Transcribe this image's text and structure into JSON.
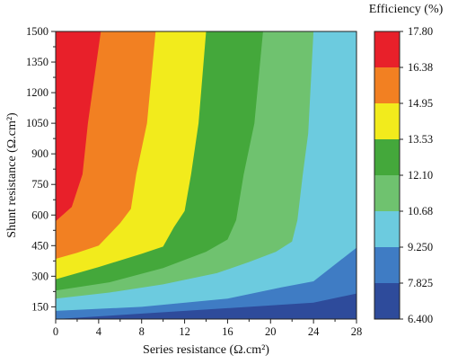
{
  "chart_data": {
    "type": "heatmap",
    "subtype": "filled-contour",
    "xlabel": "Series resistance (Ω.cm²)",
    "ylabel": "Shunt resistance (Ω.cm²)",
    "xlim": [
      0,
      28
    ],
    "ylim": [
      90,
      1500
    ],
    "x_ticks": [
      0,
      4,
      8,
      12,
      16,
      20,
      24,
      28
    ],
    "y_ticks": [
      150,
      300,
      450,
      600,
      750,
      900,
      1050,
      1200,
      1350,
      1500
    ],
    "colorbar": {
      "title": "Efficiency (%)",
      "levels": [
        "6.400",
        "7.825",
        "9.250",
        "10.68",
        "12.10",
        "13.53",
        "14.95",
        "16.38",
        "17.80"
      ],
      "colors": [
        "#2e4b9b",
        "#3f7cc4",
        "#6ccbdf",
        "#6fc26f",
        "#44a83b",
        "#f2eb1c",
        "#f28022",
        "#e8202a"
      ]
    },
    "contour_boundaries": [
      {
        "between": [
          "7.825",
          "9.250"
        ],
        "points": [
          [
            0,
            90
          ],
          [
            24,
            170
          ],
          [
            28,
            215
          ]
        ]
      },
      {
        "between": [
          "9.250",
          "10.68"
        ],
        "points": [
          [
            0,
            130
          ],
          [
            8,
            150
          ],
          [
            16,
            190
          ],
          [
            21,
            245
          ],
          [
            24,
            275
          ],
          [
            28,
            440
          ]
        ]
      },
      {
        "between": [
          "10.68",
          "12.10"
        ],
        "points": [
          [
            0,
            190
          ],
          [
            5,
            220
          ],
          [
            10,
            260
          ],
          [
            15,
            315
          ],
          [
            18,
            370
          ],
          [
            20.5,
            420
          ],
          [
            22,
            470
          ],
          [
            22.5,
            575
          ],
          [
            23,
            800
          ],
          [
            23.5,
            1000
          ],
          [
            24,
            1500
          ]
        ]
      },
      {
        "between": [
          "12.10",
          "13.53"
        ],
        "points": [
          [
            0,
            230
          ],
          [
            5,
            270
          ],
          [
            10,
            340
          ],
          [
            14,
            420
          ],
          [
            16,
            480
          ],
          [
            16.8,
            575
          ],
          [
            17.5,
            800
          ],
          [
            18.5,
            1050
          ],
          [
            19.3,
            1500
          ]
        ]
      },
      {
        "between": [
          "13.53",
          "14.95"
        ],
        "points": [
          [
            0,
            285
          ],
          [
            4,
            345
          ],
          [
            8,
            410
          ],
          [
            10,
            445
          ],
          [
            11,
            540
          ],
          [
            12,
            620
          ],
          [
            12.6,
            800
          ],
          [
            13.3,
            1050
          ],
          [
            14,
            1500
          ]
        ]
      },
      {
        "between": [
          "14.95",
          "16.38"
        ],
        "points": [
          [
            0,
            385
          ],
          [
            2,
            415
          ],
          [
            4,
            450
          ],
          [
            6,
            560
          ],
          [
            7,
            630
          ],
          [
            7.5,
            800
          ],
          [
            8.5,
            1050
          ],
          [
            9.3,
            1500
          ]
        ]
      },
      {
        "between": [
          "16.38",
          "17.80"
        ],
        "points": [
          [
            0,
            570
          ],
          [
            1.5,
            640
          ],
          [
            2.5,
            800
          ],
          [
            3,
            1050
          ],
          [
            4.2,
            1500
          ]
        ]
      }
    ]
  }
}
